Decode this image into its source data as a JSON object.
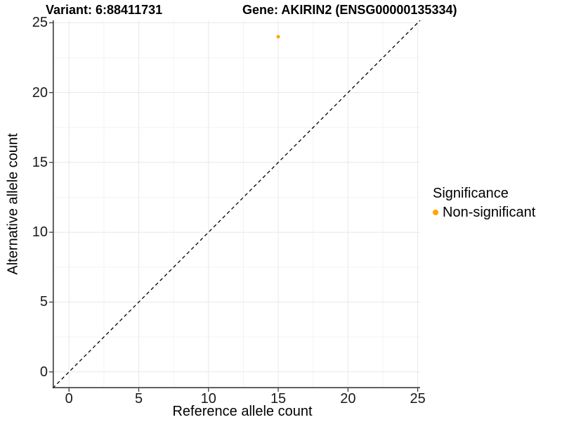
{
  "chart_data": {
    "type": "scatter",
    "titles": {
      "left": "Variant: 6:88411731",
      "right": "Gene: AKIRIN2 (ENSG00000135334)"
    },
    "xlabel": "Reference allele count",
    "ylabel": "Alternative allele count",
    "xlim": [
      0,
      25
    ],
    "ylim": [
      0,
      25
    ],
    "range": [
      -1.17,
      25.17
    ],
    "ticks": [
      0,
      5,
      10,
      15,
      20,
      25
    ],
    "minor_ticks": [
      2.5,
      7.5,
      12.5,
      17.5,
      22.5
    ],
    "grid": "on",
    "points": [
      {
        "x": 15,
        "y": 24,
        "series": "Non-significant"
      }
    ],
    "identity_line": {
      "style": "dashed",
      "from": -1.17,
      "to": 25.17
    },
    "legend": {
      "position": "right",
      "title": "Significance",
      "items": [
        {
          "label": "Non-significant",
          "color": "#FFA500"
        }
      ]
    },
    "colors": {
      "point": "#FFA500",
      "grid_major": "#E8E8E8",
      "grid_minor": "#F3F3F3",
      "axis": "#3C3C3C",
      "identity": "#000000",
      "tick_text": "#1A1A1A"
    }
  }
}
